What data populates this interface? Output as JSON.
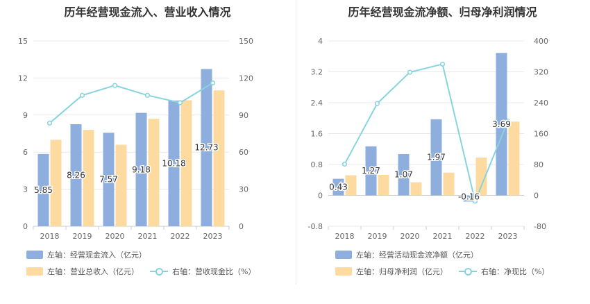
{
  "chart_data": [
    {
      "type": "bar",
      "title": "历年经营现金流入、营业收入情况",
      "categories": [
        "2018",
        "2019",
        "2020",
        "2021",
        "2022",
        "2023"
      ],
      "left_axis": {
        "min": 0,
        "max": 15,
        "ticks": [
          "0",
          "3",
          "6",
          "9",
          "12",
          "15"
        ]
      },
      "right_axis": {
        "min": 0,
        "max": 150,
        "ticks": [
          "0",
          "30",
          "60",
          "90",
          "120",
          "150"
        ]
      },
      "series": [
        {
          "name": "左轴：经营现金流入（亿元）",
          "kind": "bar",
          "axis": "left",
          "color": "#8eaedd",
          "values": [
            5.85,
            8.26,
            7.57,
            9.18,
            10.18,
            12.73
          ],
          "labels": [
            "5.85",
            "8.26",
            "7.57",
            "9.18",
            "10.18",
            "12.73"
          ]
        },
        {
          "name": "左轴：营业总收入（亿元）",
          "kind": "bar",
          "axis": "left",
          "color": "#fddba0",
          "values": [
            7.0,
            7.8,
            6.6,
            8.7,
            10.2,
            11.0
          ]
        },
        {
          "name": "右轴：营收现金比（%）",
          "kind": "line",
          "axis": "right",
          "color": "#88d4de",
          "values": [
            83.5,
            106,
            114,
            106,
            100,
            116
          ]
        }
      ],
      "grid": true,
      "legend_position": "bottom"
    },
    {
      "type": "bar",
      "title": "历年经营现金流净额、归母净利润情况",
      "categories": [
        "2018",
        "2019",
        "2020",
        "2021",
        "2022",
        "2023"
      ],
      "left_axis": {
        "min": -0.8,
        "max": 4,
        "ticks": [
          "-0.8",
          "0",
          "0.8",
          "1.6",
          "2.4",
          "3.2",
          "4"
        ]
      },
      "right_axis": {
        "min": -80,
        "max": 400,
        "ticks": [
          "-80",
          "0",
          "80",
          "160",
          "240",
          "320",
          "400"
        ]
      },
      "series": [
        {
          "name": "左轴：经营活动现金流净额（亿元）",
          "kind": "bar",
          "axis": "left",
          "color": "#8eaedd",
          "values": [
            0.43,
            1.27,
            1.07,
            1.97,
            -0.16,
            3.69
          ],
          "labels": [
            "0.43",
            "1.27",
            "1.07",
            "1.97",
            "-0.16",
            "3.69"
          ]
        },
        {
          "name": "左轴：归母净利润（亿元）",
          "kind": "bar",
          "axis": "left",
          "color": "#fddba0",
          "values": [
            0.52,
            0.53,
            0.34,
            0.59,
            0.98,
            1.91
          ]
        },
        {
          "name": "右轴：净现比（%）",
          "kind": "line",
          "axis": "right",
          "color": "#88d4de",
          "values": [
            81,
            238,
            319,
            340,
            -15,
            192
          ]
        }
      ],
      "grid": true,
      "legend_position": "bottom"
    }
  ]
}
